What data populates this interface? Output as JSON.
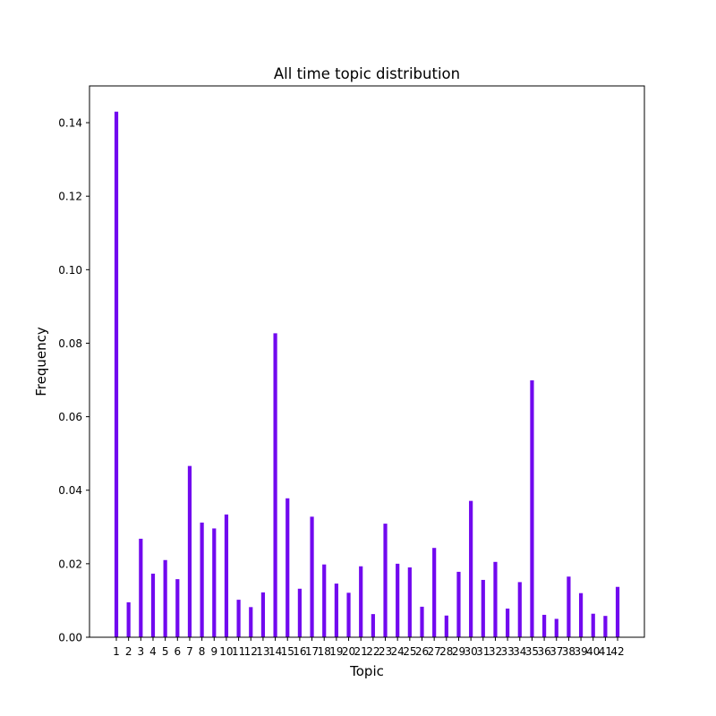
{
  "chart_data": {
    "type": "bar",
    "title": "All time topic distribution",
    "xlabel": "Topic",
    "ylabel": "Frequency",
    "categories": [
      "1",
      "2",
      "3",
      "4",
      "5",
      "6",
      "7",
      "8",
      "9",
      "10",
      "11",
      "12",
      "13",
      "14",
      "15",
      "16",
      "17",
      "18",
      "19",
      "20",
      "21",
      "22",
      "23",
      "24",
      "25",
      "26",
      "27",
      "28",
      "29",
      "30",
      "31",
      "32",
      "33",
      "34",
      "35",
      "36",
      "37",
      "38",
      "39",
      "40",
      "41",
      "42"
    ],
    "values": [
      0.143,
      0.0095,
      0.0268,
      0.0173,
      0.021,
      0.0158,
      0.0466,
      0.0312,
      0.0296,
      0.0334,
      0.0102,
      0.0082,
      0.0122,
      0.0827,
      0.0378,
      0.0132,
      0.0328,
      0.0198,
      0.0146,
      0.0121,
      0.0193,
      0.0063,
      0.0309,
      0.02,
      0.019,
      0.0083,
      0.0243,
      0.0059,
      0.0178,
      0.0371,
      0.0156,
      0.0205,
      0.0078,
      0.015,
      0.0699,
      0.0061,
      0.005,
      0.0165,
      0.012,
      0.0064,
      0.0058,
      0.0137
    ],
    "ylim": [
      0,
      0.15
    ],
    "yticks": [
      "0.00",
      "0.02",
      "0.04",
      "0.06",
      "0.08",
      "0.10",
      "0.12",
      "0.14"
    ],
    "bar_color": "#7109ef",
    "grid": false,
    "legend": "none"
  }
}
